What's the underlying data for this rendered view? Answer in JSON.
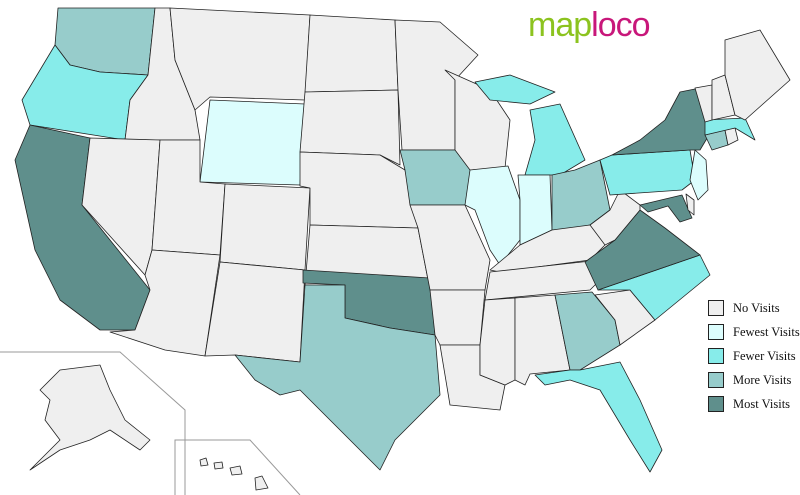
{
  "logo": {
    "part1": "map",
    "part2": "loco"
  },
  "categories": {
    "none": {
      "label": "No Visits",
      "color": "#efefef"
    },
    "fewest": {
      "label": "Fewest Visits",
      "color": "#dcfdfd"
    },
    "fewer": {
      "label": "Fewer Visits",
      "color": "#87ecea"
    },
    "more": {
      "label": "More Visits",
      "color": "#97cccb"
    },
    "most": {
      "label": "Most Visits",
      "color": "#5f8f8c"
    }
  },
  "legend_order": [
    "none",
    "fewest",
    "fewer",
    "more",
    "most"
  ],
  "states": {
    "WA": "more",
    "OR": "fewer",
    "CA": "most",
    "ID": "none",
    "NV": "none",
    "MT": "none",
    "WY": "fewest",
    "UT": "none",
    "AZ": "none",
    "CO": "none",
    "NM": "none",
    "ND": "none",
    "SD": "none",
    "NE": "none",
    "KS": "none",
    "OK": "most",
    "TX": "more",
    "MN": "none",
    "IA": "more",
    "MO": "none",
    "AR": "none",
    "LA": "none",
    "WI": "none",
    "IL": "fewest",
    "MI": "fewer",
    "IN": "fewest",
    "OH": "more",
    "KY": "none",
    "TN": "none",
    "MS": "none",
    "AL": "none",
    "GA": "more",
    "FL": "fewer",
    "SC": "none",
    "NC": "fewer",
    "VA": "most",
    "WV": "none",
    "PA": "fewer",
    "NY": "most",
    "MD": "most",
    "DE": "none",
    "NJ": "fewest",
    "CT": "more",
    "RI": "none",
    "MA": "fewer",
    "VT": "none",
    "NH": "none",
    "ME": "none",
    "AK": "none",
    "HI": "none"
  }
}
